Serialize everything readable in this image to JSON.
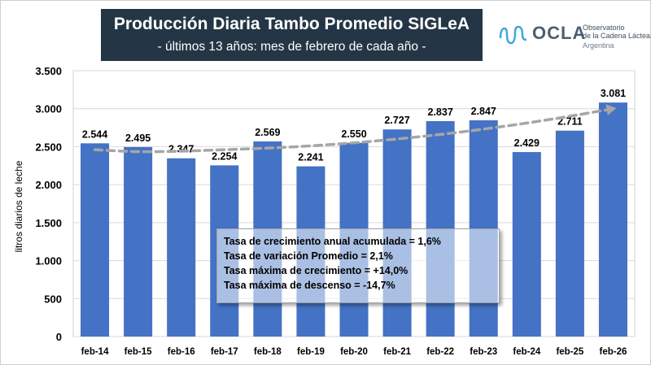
{
  "header": {
    "title": "Producción Diaria Tambo Promedio SIGLeA",
    "subtitle": "- últimos 13 años: mes de febrero de cada año -"
  },
  "logo": {
    "name": "OCLA",
    "line1": "Observatorio",
    "line2": "de la Cadena Láctea",
    "line3": "Argentina",
    "color": "#4a5f72"
  },
  "stats": [
    "Tasa de crecimiento anual acumulada = 1,6%",
    "Tasa de variación Promedio = 2,1%",
    "Tasa máxima de crecimiento = +14,0%",
    "Tasa máxima de descenso = -14,7%"
  ],
  "chart_data": {
    "type": "bar",
    "title": "Producción Diaria Tambo Promedio SIGLeA",
    "xlabel": "",
    "ylabel": "litros diarios de leche",
    "categories": [
      "feb-14",
      "feb-15",
      "feb-16",
      "feb-17",
      "feb-18",
      "feb-19",
      "feb-20",
      "feb-21",
      "feb-22",
      "feb-23",
      "feb-24",
      "feb-25",
      "feb-26"
    ],
    "values": [
      2544,
      2495,
      2347,
      2254,
      2569,
      2241,
      2550,
      2727,
      2837,
      2847,
      2429,
      2711,
      3081
    ],
    "value_labels": [
      "2.544",
      "2.495",
      "2.347",
      "2.254",
      "2.569",
      "2.241",
      "2.550",
      "2.727",
      "2.837",
      "2.847",
      "2.429",
      "2.711",
      "3.081"
    ],
    "yticks": [
      0,
      500,
      1000,
      1500,
      2000,
      2500,
      3000,
      3500
    ],
    "ytick_labels": [
      "0",
      "500",
      "1.000",
      "1.500",
      "2.000",
      "2.500",
      "3.000",
      "3.500"
    ],
    "ylim": [
      0,
      3500
    ],
    "grid": true,
    "bar_color": "#4472c4",
    "plot_background": "#ffffff",
    "trendline": {
      "style": "dashed",
      "color": "#a6a6a6",
      "values": [
        2460,
        2430,
        2440,
        2460,
        2480,
        2510,
        2550,
        2600,
        2660,
        2730,
        2810,
        2900,
        3000
      ]
    }
  }
}
